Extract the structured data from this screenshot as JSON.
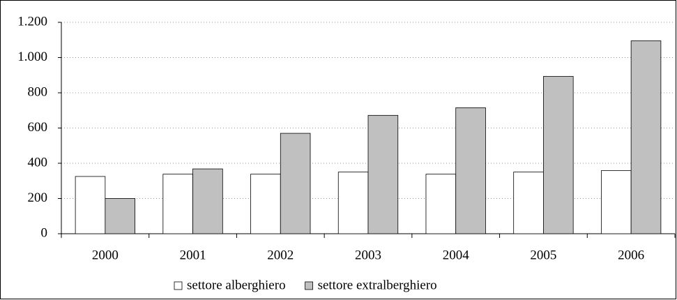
{
  "chart_data": {
    "type": "bar",
    "categories": [
      "2000",
      "2001",
      "2002",
      "2003",
      "2004",
      "2005",
      "2006"
    ],
    "series": [
      {
        "name": "settore alberghiero",
        "color": "#ffffff",
        "values": [
          325,
          338,
          338,
          350,
          338,
          350,
          358
        ]
      },
      {
        "name": "settore extralberghiero",
        "color": "#c0c0c0",
        "values": [
          200,
          368,
          570,
          672,
          715,
          893,
          1095
        ]
      }
    ],
    "ylim": [
      0,
      1200
    ],
    "yticks": [
      0,
      200,
      400,
      600,
      800,
      {
        "value": 1000,
        "label": "1.000"
      },
      {
        "value": 1200,
        "label": "1.200"
      }
    ],
    "grid": true,
    "legend": "bottom"
  }
}
